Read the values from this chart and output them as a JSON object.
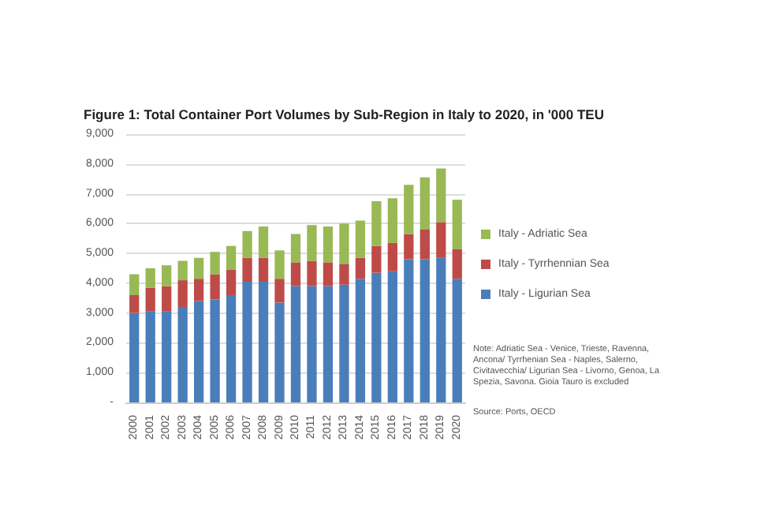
{
  "chart_data": {
    "type": "bar",
    "title": "Figure 1: Total Container Port Volumes by Sub-Region in Italy to 2020, in '000 TEU",
    "categories": [
      "2000",
      "2001",
      "2002",
      "2003",
      "2004",
      "2005",
      "2006",
      "2007",
      "2008",
      "2009",
      "2010",
      "2011",
      "2012",
      "2013",
      "2014",
      "2015",
      "2016",
      "2017",
      "2018",
      "2019",
      "2020"
    ],
    "stacked": true,
    "series": [
      {
        "name": "Italy - Ligurian Sea",
        "color": "#4a7ebb",
        "values": [
          3000,
          3050,
          3050,
          3200,
          3400,
          3450,
          3600,
          4050,
          4050,
          3350,
          3900,
          3900,
          3900,
          3950,
          4150,
          4350,
          4400,
          4800,
          4800,
          4850,
          4150
        ]
      },
      {
        "name": "Italy - Tyrrhennian Sea",
        "color": "#be4b48",
        "values": [
          600,
          800,
          850,
          900,
          750,
          850,
          850,
          800,
          800,
          800,
          800,
          850,
          800,
          700,
          700,
          900,
          950,
          850,
          1000,
          1200,
          1000
        ]
      },
      {
        "name": "Italy - Adriatic Sea",
        "color": "#98b954",
        "values": [
          700,
          650,
          700,
          650,
          700,
          750,
          800,
          900,
          1050,
          950,
          950,
          1200,
          1200,
          1350,
          1250,
          1500,
          1500,
          1650,
          1750,
          1800,
          1650
        ]
      }
    ],
    "ylim": [
      0,
      9000
    ],
    "yticks": [
      {
        "value": 0,
        "label": "-"
      },
      {
        "value": 1000,
        "label": "1,000"
      },
      {
        "value": 2000,
        "label": "2,000"
      },
      {
        "value": 3000,
        "label": "3,000"
      },
      {
        "value": 4000,
        "label": "4,000"
      },
      {
        "value": 5000,
        "label": "5,000"
      },
      {
        "value": 6000,
        "label": "6,000"
      },
      {
        "value": 7000,
        "label": "7,000"
      },
      {
        "value": 8000,
        "label": "8,000"
      },
      {
        "value": 9000,
        "label": "9,000"
      }
    ],
    "grid": "y",
    "legend": "right",
    "annotations": [
      "Note: Adriatic Sea - Venice, Trieste, Ravenna, Ancona/ Tyrrhenian Sea - Naples, Salerno, Civitavecchia/ Ligurian Sea - Livorno, Genoa, La Spezia, Savona. Gioia Tauro is excluded",
      "Source: Ports, OECD"
    ]
  }
}
